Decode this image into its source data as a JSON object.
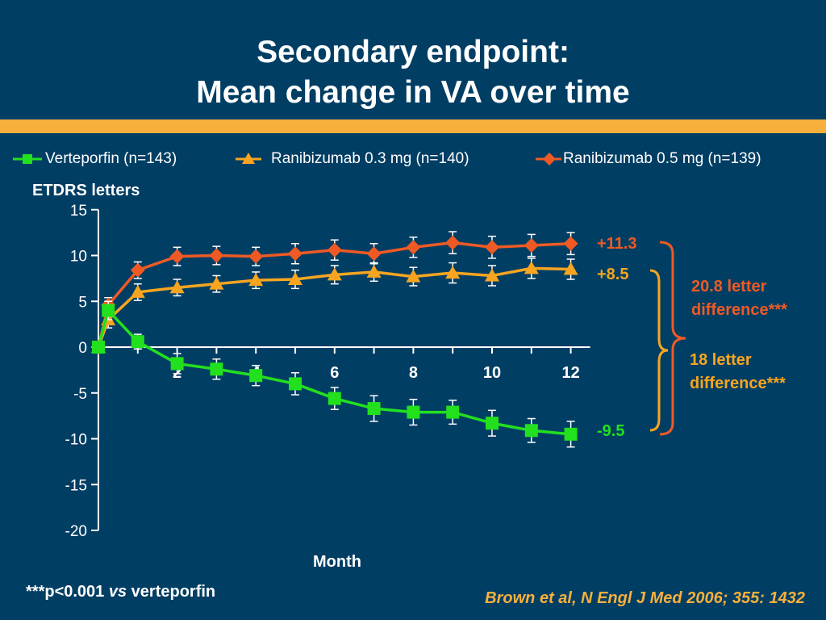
{
  "slide": {
    "title_line1": "Secondary endpoint:",
    "title_line2": "Mean change in VA over time",
    "footnote_prefix": "***p<0.001 ",
    "footnote_vs": "vs",
    "footnote_suffix": " verteporfin",
    "citation": "Brown et al, N Engl J Med 2006; 355: 1432"
  },
  "colors": {
    "background": "#003e64",
    "band": "#f7b03c",
    "verteporfin": "#22e01e",
    "ranibizumab_03": "#f7a520",
    "ranibizumab_05": "#ef5a24"
  },
  "chart_data": {
    "type": "line",
    "ylabel": "ETDRS letters",
    "xlabel": "Month",
    "ylim": [
      -20,
      15
    ],
    "xlim": [
      0,
      12
    ],
    "y_ticks": [
      15,
      10,
      5,
      0,
      -5,
      -10,
      -15,
      -20
    ],
    "x_ticks": [
      2,
      4,
      6,
      8,
      10,
      12
    ],
    "legend_position": "top",
    "series": [
      {
        "name": "Verteporfin (n=143)",
        "marker": "square",
        "color": "#22e01e",
        "x": [
          0,
          0.25,
          1,
          2,
          3,
          4,
          5,
          6,
          7,
          8,
          9,
          10,
          11,
          12
        ],
        "y": [
          0,
          4.0,
          0.6,
          -1.8,
          -2.4,
          -3.1,
          -4.0,
          -5.6,
          -6.7,
          -7.1,
          -7.1,
          -8.3,
          -9.1,
          -9.5
        ],
        "error": [
          0,
          1.0,
          0.8,
          1.1,
          1.1,
          1.1,
          1.2,
          1.2,
          1.4,
          1.4,
          1.3,
          1.4,
          1.3,
          1.4
        ]
      },
      {
        "name": "Ranibizumab 0.3 mg (n=140)",
        "marker": "triangle",
        "color": "#f7a520",
        "x": [
          0,
          0.25,
          1,
          2,
          3,
          4,
          5,
          6,
          7,
          8,
          9,
          10,
          11,
          12
        ],
        "y": [
          0,
          3.0,
          6.0,
          6.5,
          6.9,
          7.3,
          7.4,
          7.9,
          8.2,
          7.7,
          8.1,
          7.8,
          8.6,
          8.5
        ],
        "error": [
          0,
          0.9,
          0.9,
          0.9,
          0.9,
          0.9,
          1.0,
          1.0,
          1.0,
          1.0,
          1.1,
          1.1,
          1.1,
          1.1
        ]
      },
      {
        "name": "Ranibizumab 0.5 mg (n=139)",
        "marker": "diamond",
        "color": "#ef5a24",
        "x": [
          0,
          0.25,
          1,
          2,
          3,
          4,
          5,
          6,
          7,
          8,
          9,
          10,
          11,
          12
        ],
        "y": [
          0,
          4.6,
          8.4,
          9.9,
          10.0,
          9.9,
          10.2,
          10.6,
          10.2,
          10.9,
          11.4,
          10.9,
          11.1,
          11.3
        ],
        "error": [
          0,
          0.8,
          0.9,
          1.0,
          1.0,
          1.0,
          1.1,
          1.1,
          1.1,
          1.1,
          1.2,
          1.2,
          1.2,
          1.2
        ]
      }
    ],
    "annotations": [
      {
        "text": "+11.3",
        "series": 2,
        "color": "#ef5a24"
      },
      {
        "text": "+8.5",
        "series": 1,
        "color": "#f7a520"
      },
      {
        "text": "-9.5",
        "series": 0,
        "color": "#22e01e"
      },
      {
        "text_line1": "20.8 letter",
        "text_line2": "difference***",
        "color": "#ef5a24"
      },
      {
        "text_line1": "18 letter",
        "text_line2": "difference***",
        "color": "#f7a520"
      }
    ]
  }
}
